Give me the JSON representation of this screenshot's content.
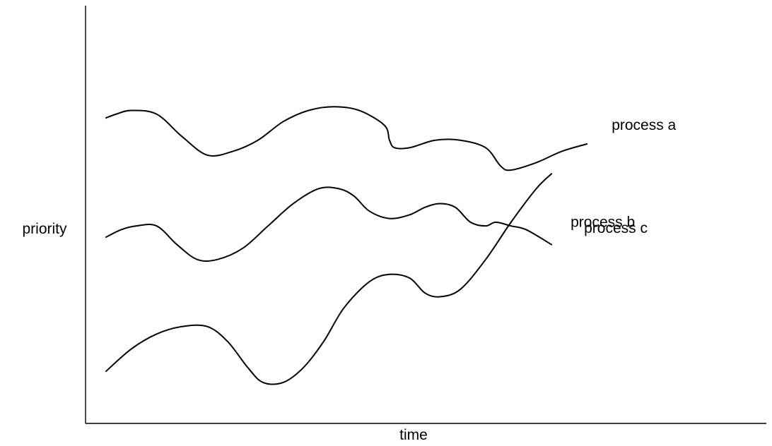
{
  "chart_data": {
    "type": "line",
    "xlabel": "time",
    "ylabel": "priority",
    "grid": false,
    "legend": "inline-right",
    "ticks": "none",
    "xlim": [
      0,
      100
    ],
    "ylim": [
      0,
      100
    ],
    "series": [
      {
        "name": "process a",
        "x": [
          0,
          2,
          5,
          10,
          15,
          20,
          25,
          30,
          35,
          40,
          45,
          50,
          55,
          56,
          57,
          60,
          65,
          70,
          75,
          78,
          80,
          85,
          90,
          95
        ],
        "y": [
          82,
          83,
          84,
          83,
          77,
          72,
          73,
          76,
          81,
          84,
          85,
          84,
          80,
          76,
          74,
          74,
          76,
          76,
          74,
          69,
          68,
          70,
          73,
          75
        ]
      },
      {
        "name": "process b",
        "x": [
          0,
          3,
          6,
          10,
          14,
          18,
          22,
          27,
          32,
          37,
          42,
          46,
          49,
          52,
          56,
          60,
          63,
          66,
          69,
          72,
          75,
          77,
          80,
          83,
          88
        ],
        "y": [
          50,
          52,
          53,
          53,
          48,
          44,
          44,
          47,
          53,
          59,
          63,
          63,
          61,
          57,
          55,
          56,
          58,
          59,
          58,
          54,
          53,
          54,
          53,
          52,
          48
        ]
      },
      {
        "name": "process c",
        "x": [
          0,
          5,
          10,
          15,
          20,
          24,
          28,
          31,
          35,
          39,
          43,
          47,
          52,
          56,
          60,
          63,
          66,
          70,
          75,
          80,
          85,
          88
        ],
        "y": [
          14,
          20,
          24,
          26,
          26,
          22,
          15,
          11,
          11,
          15,
          22,
          31,
          38,
          40,
          39,
          35,
          34,
          36,
          44,
          54,
          63,
          67
        ]
      }
    ]
  }
}
